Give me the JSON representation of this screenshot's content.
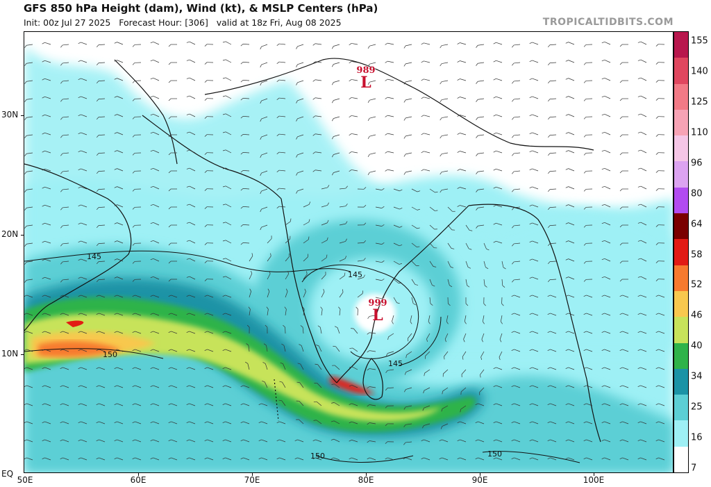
{
  "header": {
    "title": "GFS 850 hPa Height (dam), Wind (kt), & MSLP Centers (hPa)",
    "subtitle": "Init: 00z Jul 27 2025   Forecast Hour: [306]   valid at 18z Fri, Aug 08 2025",
    "watermark": "TROPICALTIDBITS.COM"
  },
  "axes": {
    "lat_labels": [
      "30N",
      "20N",
      "10N",
      "EQ"
    ],
    "lon_labels": [
      "50E",
      "60E",
      "70E",
      "80E",
      "90E",
      "100E"
    ]
  },
  "colorbar": {
    "unit_hint": "kt",
    "labels": [
      "155",
      "140",
      "125",
      "110",
      "96",
      "80",
      "64",
      "58",
      "52",
      "46",
      "40",
      "34",
      "25",
      "16",
      "7"
    ],
    "colors": [
      "#b8174d",
      "#e0475f",
      "#f27a86",
      "#f7a3b5",
      "#f5c6e6",
      "#dca3f0",
      "#b24cf0",
      "#7a0000",
      "#e21b14",
      "#f77a2e",
      "#f8c84e",
      "#c7e35a",
      "#2fb34a",
      "#1b93a6",
      "#5ccfd5",
      "#9ef0f5",
      "#ffffff"
    ]
  },
  "pressure_centers": [
    {
      "pressure": "989",
      "symbol": "L",
      "lon": 80.0,
      "lat": 33.5
    },
    {
      "pressure": "999",
      "symbol": "L",
      "lon": 81.0,
      "lat": 12.5
    }
  ],
  "contour_labels": [
    {
      "text": "145",
      "lon": 56.0,
      "lat": 18.5
    },
    {
      "text": "150",
      "lon": 57.5,
      "lat": 9.8
    },
    {
      "text": "145",
      "lon": 78.7,
      "lat": 16.7
    },
    {
      "text": "145",
      "lon": 82.3,
      "lat": 9.2
    },
    {
      "text": "150",
      "lon": 76.3,
      "lat": 1.2
    },
    {
      "text": "150",
      "lon": 90.3,
      "lat": 1.5
    }
  ]
}
